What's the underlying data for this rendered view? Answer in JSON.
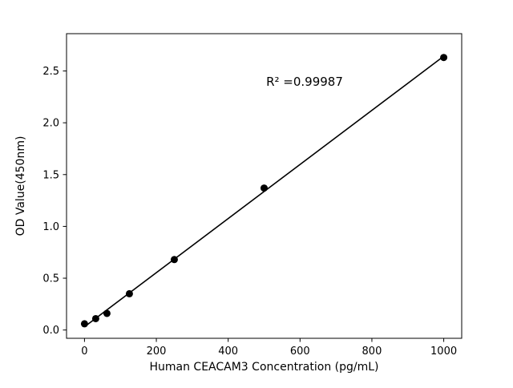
{
  "chart_data": {
    "type": "scatter",
    "title": "",
    "xlabel": "Human CEACAM3 Concentration (pg/mL)",
    "ylabel": "OD Value(450nm)",
    "x": [
      0,
      31.25,
      62.5,
      125,
      250,
      500,
      1000
    ],
    "y": [
      0.06,
      0.11,
      0.16,
      0.35,
      0.68,
      1.37,
      2.63
    ],
    "annotation": "R² =0.99987",
    "x_ticks": [
      0,
      200,
      400,
      600,
      800,
      1000
    ],
    "y_ticks": [
      0.0,
      0.5,
      1.0,
      1.5,
      2.0,
      2.5
    ],
    "xlim": [
      -50,
      1050
    ],
    "ylim": [
      -0.08,
      2.86
    ],
    "grid": false,
    "legend": "none",
    "line_color": "#000000",
    "marker_color": "#000000",
    "background_color": "#ffffff"
  }
}
